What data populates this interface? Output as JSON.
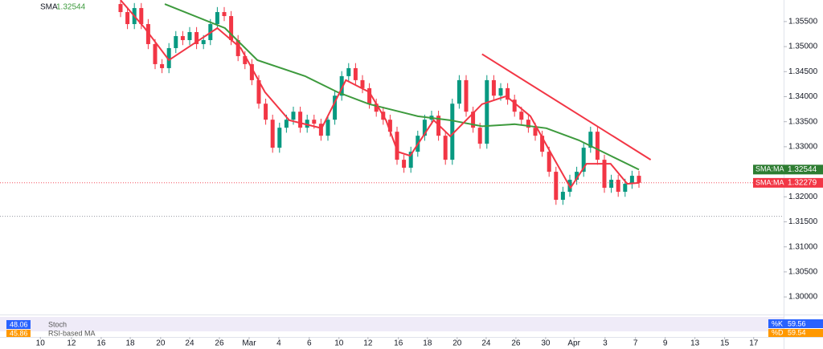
{
  "chart_data": {
    "type": "candlestick",
    "up_color": "#089981",
    "down_color": "#f23645",
    "xlim": [
      -17.44,
      95.93
    ],
    "ylim": [
      1.29649,
      1.35931
    ],
    "grid": false,
    "open": [
      1.3585,
      1.3569,
      1.3545,
      1.3577,
      1.3545,
      1.3505,
      1.3465,
      1.3457,
      1.3497,
      1.3521,
      1.3513,
      1.3529,
      1.3505,
      1.3513,
      1.3545,
      1.3569,
      1.3561,
      1.3513,
      1.3481,
      1.3465,
      1.3433,
      1.3386,
      1.3354,
      1.3298,
      1.3338,
      1.3354,
      1.337,
      1.3338,
      1.3354,
      1.3346,
      1.3322,
      1.3354,
      1.3402,
      1.3441,
      1.3457,
      1.3433,
      1.3417,
      1.3386,
      1.337,
      1.3354,
      1.333,
      1.3274,
      1.3258,
      1.329,
      1.3322,
      1.3354,
      1.3362,
      1.3322,
      1.3274,
      1.3386,
      1.3433,
      1.337,
      1.3338,
      1.3306,
      1.3433,
      1.3402,
      1.3417,
      1.3394,
      1.337,
      1.3354,
      1.3338,
      1.3322,
      1.329,
      1.325,
      1.3194,
      1.321,
      1.3234,
      1.325,
      1.3298,
      1.333,
      1.3274,
      1.3218,
      1.3234,
      1.321,
      1.3226,
      1.3242
    ],
    "high": [
      1.3595,
      1.3579,
      1.3587,
      1.3587,
      1.3555,
      1.3515,
      1.3475,
      1.3507,
      1.3531,
      1.3531,
      1.3539,
      1.3539,
      1.3523,
      1.3555,
      1.3579,
      1.3579,
      1.3571,
      1.3523,
      1.3491,
      1.3475,
      1.3443,
      1.3396,
      1.3364,
      1.3348,
      1.3364,
      1.338,
      1.338,
      1.3364,
      1.3364,
      1.3356,
      1.3364,
      1.3412,
      1.3451,
      1.3467,
      1.3467,
      1.3443,
      1.3427,
      1.3396,
      1.338,
      1.3364,
      1.334,
      1.3284,
      1.33,
      1.3332,
      1.3364,
      1.3372,
      1.3372,
      1.3332,
      1.3396,
      1.3443,
      1.3443,
      1.338,
      1.3348,
      1.3443,
      1.3443,
      1.3427,
      1.3427,
      1.3404,
      1.338,
      1.3364,
      1.3348,
      1.3332,
      1.33,
      1.326,
      1.322,
      1.3244,
      1.326,
      1.3308,
      1.334,
      1.334,
      1.3284,
      1.3244,
      1.3244,
      1.3236,
      1.3252,
      1.3252
    ],
    "low": [
      1.3559,
      1.3535,
      1.3535,
      1.3535,
      1.3495,
      1.3455,
      1.3447,
      1.3447,
      1.3487,
      1.3503,
      1.3503,
      1.3495,
      1.3495,
      1.3503,
      1.3535,
      1.3551,
      1.3503,
      1.3471,
      1.3455,
      1.3423,
      1.3376,
      1.3344,
      1.3288,
      1.3288,
      1.3328,
      1.3344,
      1.3328,
      1.3328,
      1.3336,
      1.3312,
      1.3312,
      1.3344,
      1.3392,
      1.3431,
      1.3423,
      1.3407,
      1.3376,
      1.336,
      1.3344,
      1.332,
      1.3264,
      1.3248,
      1.3248,
      1.328,
      1.3312,
      1.3344,
      1.3312,
      1.3264,
      1.3264,
      1.3376,
      1.336,
      1.3328,
      1.3296,
      1.3296,
      1.3392,
      1.3392,
      1.3384,
      1.336,
      1.3344,
      1.3328,
      1.3312,
      1.328,
      1.324,
      1.3184,
      1.3184,
      1.32,
      1.3224,
      1.324,
      1.3288,
      1.3264,
      1.3208,
      1.3208,
      1.32,
      1.32,
      1.3216,
      1.3218
    ],
    "close": [
      1.3569,
      1.3545,
      1.3577,
      1.3545,
      1.3505,
      1.3465,
      1.3457,
      1.3497,
      1.3521,
      1.3513,
      1.3529,
      1.3505,
      1.3513,
      1.3545,
      1.3569,
      1.3561,
      1.3513,
      1.3481,
      1.3465,
      1.3433,
      1.3386,
      1.3354,
      1.3298,
      1.3338,
      1.3354,
      1.337,
      1.3338,
      1.3354,
      1.3346,
      1.3322,
      1.3354,
      1.3402,
      1.3441,
      1.3457,
      1.3433,
      1.3417,
      1.3386,
      1.337,
      1.3354,
      1.333,
      1.3274,
      1.3258,
      1.329,
      1.3322,
      1.3354,
      1.3362,
      1.3322,
      1.3274,
      1.3386,
      1.3433,
      1.337,
      1.3338,
      1.3306,
      1.3433,
      1.3402,
      1.3417,
      1.3394,
      1.337,
      1.3354,
      1.3338,
      1.3322,
      1.329,
      1.325,
      1.3194,
      1.321,
      1.3234,
      1.325,
      1.3298,
      1.333,
      1.3274,
      1.3218,
      1.3234,
      1.321,
      1.3226,
      1.3242,
      1.3228
    ],
    "series": [
      {
        "name": "SMA",
        "color": "#3d9a3d",
        "x": [
          6.4,
          15.1,
          19.8,
          26.7,
          31.4,
          36.0,
          43.0,
          47.7,
          52.3,
          57.0,
          61.6,
          66.3,
          70.9,
          75
        ],
        "values": [
          1.3585,
          1.3537,
          1.3473,
          1.3441,
          1.3409,
          1.3385,
          1.3361,
          1.3353,
          1.3341,
          1.3345,
          1.3337,
          1.3313,
          1.3282,
          1.32544
        ]
      },
      {
        "color": "#f23645",
        "x": [
          0,
          3.5,
          7.0,
          10.5,
          14.0,
          17.4,
          20.9,
          24.4,
          29.1,
          32.6,
          36.0,
          38.4,
          40.1,
          41.9,
          45.3,
          47.7,
          50.0,
          52.3,
          55.8,
          59.3,
          62.8,
          65.1,
          67.4,
          70.9,
          73.3,
          75
        ],
        "values": [
          1.3593,
          1.3537,
          1.3473,
          1.3505,
          1.3537,
          1.3497,
          1.3409,
          1.3353,
          1.3337,
          1.3433,
          1.3409,
          1.3353,
          1.329,
          1.3282,
          1.3353,
          1.3321,
          1.3353,
          1.3385,
          1.3401,
          1.3361,
          1.3274,
          1.3218,
          1.3266,
          1.3266,
          1.3226,
          1.32279
        ]
      }
    ],
    "legend": {
      "name": "SMA",
      "value": 1.32544
    },
    "trendline": {
      "x": [
        52.3,
        76.7
      ],
      "values": [
        1.3485,
        1.3274
      ],
      "color": "#f23645"
    },
    "support_line": 1.3161,
    "price_tags": [
      {
        "label": "SMA:MA",
        "value": 1.32544,
        "color": "#2e7d32"
      },
      {
        "label": "SMA:MA",
        "value": 1.32279,
        "color": "#f23645"
      }
    ],
    "yticks": [
      {
        "value": 1.355,
        "label": "1.35500"
      },
      {
        "value": 1.35,
        "label": "1.35000"
      },
      {
        "value": 1.345,
        "label": "1.34500"
      },
      {
        "value": 1.34,
        "label": "1.34000"
      },
      {
        "value": 1.335,
        "label": "1.33500"
      },
      {
        "value": 1.33,
        "label": "1.33000"
      },
      {
        "value": 1.325,
        "label": "1.32500"
      },
      {
        "value": 1.32,
        "label": "1.32000"
      },
      {
        "value": 1.315,
        "label": "1.31500"
      },
      {
        "value": 1.31,
        "label": "1.31000"
      },
      {
        "value": 1.305,
        "label": "1.30500"
      },
      {
        "value": 1.3,
        "label": "1.30000"
      }
    ],
    "xticks": [
      {
        "value": -11.6,
        "label": "10"
      },
      {
        "value": -7.1,
        "label": "12"
      },
      {
        "value": -2.8,
        "label": "16"
      },
      {
        "value": 1.4,
        "label": "18"
      },
      {
        "value": 5.8,
        "label": "20"
      },
      {
        "value": 10.0,
        "label": "24"
      },
      {
        "value": 14.3,
        "label": "26"
      },
      {
        "value": 18.6,
        "label": "Mar"
      },
      {
        "value": 22.9,
        "label": "4"
      },
      {
        "value": 27.3,
        "label": "6"
      },
      {
        "value": 31.6,
        "label": "10"
      },
      {
        "value": 35.8,
        "label": "12"
      },
      {
        "value": 40.2,
        "label": "16"
      },
      {
        "value": 44.4,
        "label": "18"
      },
      {
        "value": 48.7,
        "label": "20"
      },
      {
        "value": 52.9,
        "label": "24"
      },
      {
        "value": 57.2,
        "label": "26"
      },
      {
        "value": 61.5,
        "label": "30"
      },
      {
        "value": 65.6,
        "label": "Apr"
      },
      {
        "value": 70.1,
        "label": "3"
      },
      {
        "value": 74.5,
        "label": "7"
      },
      {
        "value": 78.8,
        "label": "9"
      },
      {
        "value": 83.1,
        "label": "13"
      },
      {
        "value": 87.4,
        "label": "15"
      },
      {
        "value": 91.6,
        "label": "17"
      }
    ],
    "oscillator": {
      "title": "Stoch",
      "ma_title": "RSI-based MA",
      "left_values": [
        48.06,
        45.86
      ],
      "k_label": "%K",
      "k": 59.56,
      "d_label": "%D",
      "d": 59.54
    }
  }
}
